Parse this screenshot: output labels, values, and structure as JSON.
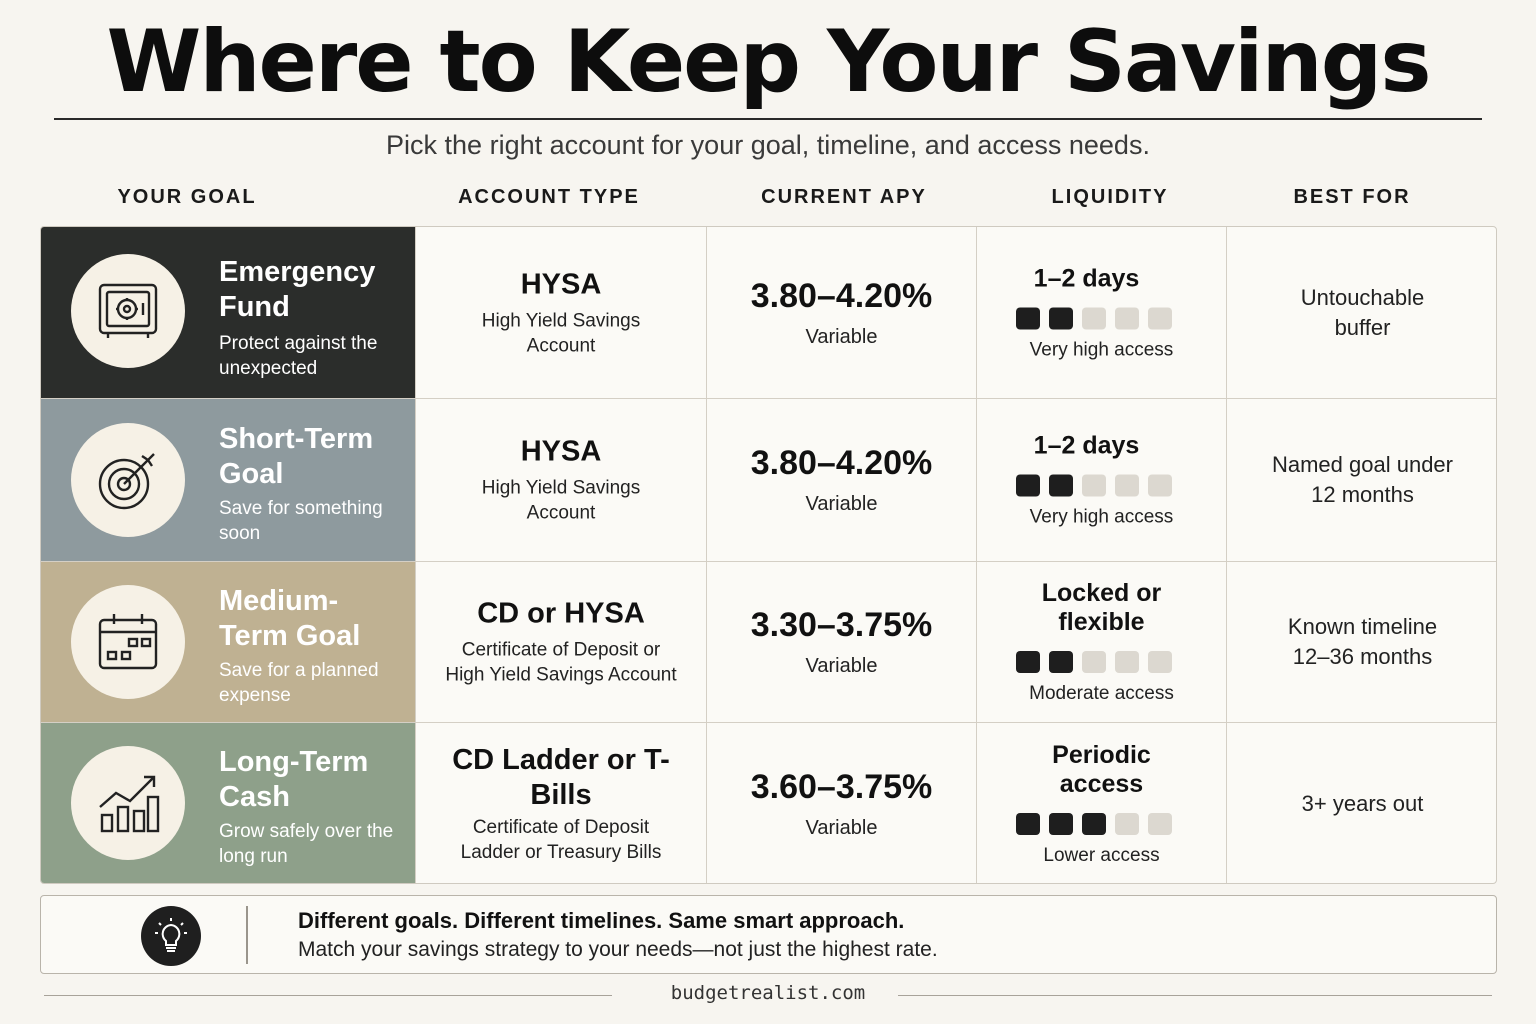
{
  "title": "Where to Keep Your Savings",
  "subtitle": "Pick the right account for your goal, timeline, and access needs.",
  "columns": [
    "YOUR GOAL",
    "ACCOUNT TYPE",
    "CURRENT APY",
    "LIQUIDITY",
    "BEST FOR"
  ],
  "rows": [
    {
      "goal": "Emergency Fund",
      "goal_desc": "Protect against the unexpected",
      "icon": "safe-icon",
      "color": "#2b2d2b",
      "account": "HYSA",
      "account_desc": "High Yield Savings Account",
      "apy": "3.80–4.20%",
      "apy_note": "Variable",
      "liquidity": "1–2 days",
      "liquidity_level": 2,
      "liquidity_note": "Very high access",
      "best_for": "Untouchable buffer"
    },
    {
      "goal": "Short-Term Goal",
      "goal_desc": "Save for something soon",
      "icon": "target-icon",
      "color": "#8e9a9e",
      "account": "HYSA",
      "account_desc": "High Yield Savings Account",
      "apy": "3.80–4.20%",
      "apy_note": "Variable",
      "liquidity": "1–2 days",
      "liquidity_level": 2,
      "liquidity_note": "Very high access",
      "best_for": "Named goal under 12 months"
    },
    {
      "goal": "Medium-Term Goal",
      "goal_desc": "Save for a planned expense",
      "icon": "calendar-icon",
      "color": "#bfb192",
      "account": "CD or HYSA",
      "account_desc": "Certificate of Deposit or High Yield Savings Account",
      "apy": "3.30–3.75%",
      "apy_note": "Variable",
      "liquidity": "Locked or flexible",
      "liquidity_level": 2,
      "liquidity_note": "Moderate access",
      "best_for": "Known timeline 12–36 months"
    },
    {
      "goal": "Long-Term Cash",
      "goal_desc": "Grow safely over the long run",
      "icon": "growth-chart-icon",
      "color": "#8ea08a",
      "account": "CD Ladder or T-Bills",
      "account_desc": "Certificate of Deposit Ladder or Treasury Bills",
      "apy": "3.60–3.75%",
      "apy_note": "Variable",
      "liquidity": "Periodic access",
      "liquidity_level": 3,
      "liquidity_note": "Lower access",
      "best_for": "3+ years out"
    }
  ],
  "footer": {
    "headline": "Different goals. Different timelines. Same smart approach.",
    "text": "Match your savings strategy to your needs—not just the highest rate.",
    "icon": "lightbulb-icon"
  },
  "site": "budgetrealist.com"
}
